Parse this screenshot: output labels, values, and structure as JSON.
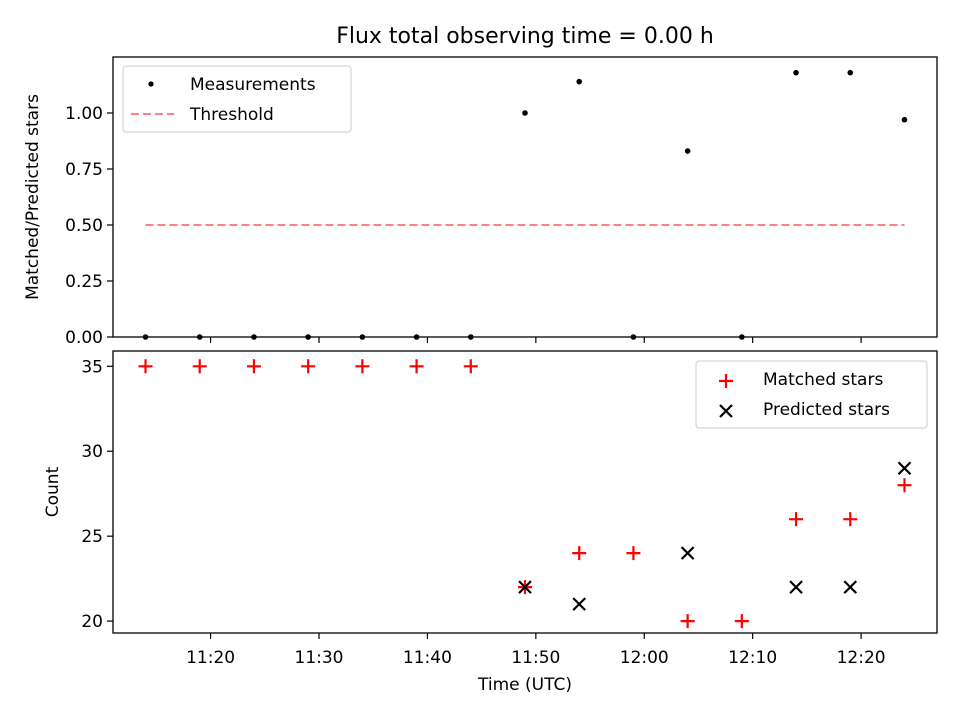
{
  "colors": {
    "measurement": "#000000",
    "threshold": "#ff8080",
    "matched": "#ff0000",
    "predicted": "#000000"
  },
  "chart_data": [
    {
      "type": "scatter",
      "title": "Flux total observing time = 0.00 h",
      "xlabel": "",
      "ylabel": "Matched/Predicted stars",
      "x": [
        "11:14",
        "11:19",
        "11:24",
        "11:29",
        "11:34",
        "11:39",
        "11:44",
        "11:49",
        "11:54",
        "11:59",
        "12:04",
        "12:09",
        "12:14",
        "12:19",
        "12:24"
      ],
      "xlim": [
        "11:11",
        "12:27"
      ],
      "ylim": [
        0,
        1.25
      ],
      "yticks": [
        "0.00",
        "0.25",
        "0.50",
        "0.75",
        "1.00"
      ],
      "legend_position": "upper left",
      "series": [
        {
          "name": "Measurements",
          "kind": "scatter-dot",
          "values": [
            0,
            0,
            0,
            0,
            0,
            0,
            0,
            1.0,
            1.14,
            0,
            0.83,
            0,
            1.18,
            1.18,
            0.97
          ]
        },
        {
          "name": "Threshold",
          "kind": "dashed-line",
          "x": [
            "11:14",
            "12:24"
          ],
          "values": [
            0.5,
            0.5
          ]
        }
      ]
    },
    {
      "type": "scatter",
      "title": "",
      "xlabel": "Time (UTC)",
      "ylabel": "Count",
      "x": [
        "11:14",
        "11:19",
        "11:24",
        "11:29",
        "11:34",
        "11:39",
        "11:44",
        "11:49",
        "11:54",
        "11:59",
        "12:04",
        "12:09",
        "12:14",
        "12:19",
        "12:24"
      ],
      "xlim": [
        "11:11",
        "12:27"
      ],
      "ylim": [
        19.3,
        35.9
      ],
      "yticks": [
        "20",
        "25",
        "30",
        "35"
      ],
      "xticks": [
        "11:20",
        "11:30",
        "11:40",
        "11:50",
        "12:00",
        "12:10",
        "12:20"
      ],
      "legend_position": "upper right",
      "series": [
        {
          "name": "Matched stars",
          "kind": "plus",
          "values": [
            35,
            35,
            35,
            35,
            35,
            35,
            35,
            22,
            24,
            24,
            20,
            20,
            26,
            26,
            28
          ]
        },
        {
          "name": "Predicted stars",
          "kind": "cross",
          "values": [
            null,
            null,
            null,
            null,
            null,
            null,
            null,
            22,
            21,
            null,
            24,
            null,
            22,
            22,
            29
          ]
        }
      ]
    }
  ]
}
